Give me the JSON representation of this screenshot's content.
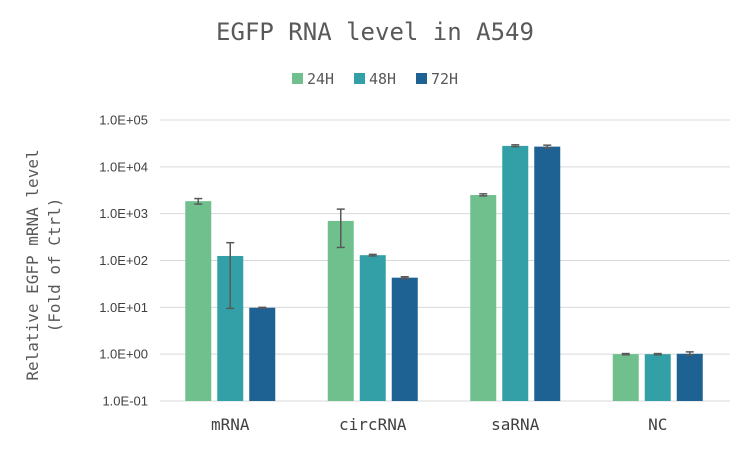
{
  "chart_data": {
    "type": "bar",
    "title": "EGFP RNA level in A549",
    "ylabel_line1": "Relative EGFP mRNA level",
    "ylabel_line2": "(Fold of Ctrl)",
    "yscale": "log",
    "ylim": [
      0.1,
      100000
    ],
    "yticks": [
      0.1,
      1,
      10,
      100,
      1000,
      10000,
      100000
    ],
    "ytick_labels": [
      "1.0E-01",
      "1.0E+00",
      "1.0E+01",
      "1.0E+02",
      "1.0E+03",
      "1.0E+04",
      "1.0E+05"
    ],
    "grid": true,
    "legend_position": "top",
    "categories": [
      "mRNA",
      "circRNA",
      "saRNA",
      "NC"
    ],
    "series": [
      {
        "name": "24H",
        "color": "#70c08e",
        "values": [
          1850,
          700,
          2500,
          1.0
        ],
        "err_low": [
          1600,
          190,
          2400,
          0.97
        ],
        "err_high": [
          2100,
          1250,
          2650,
          1.03
        ]
      },
      {
        "name": "48H",
        "color": "#32a0a6",
        "values": [
          125,
          130,
          28000,
          1.0
        ],
        "err_low": [
          9.5,
          125,
          27000,
          0.97
        ],
        "err_high": [
          240,
          135,
          29500,
          1.03
        ]
      },
      {
        "name": "72H",
        "color": "#1e6193",
        "values": [
          9.8,
          43,
          27000,
          1.02
        ],
        "err_low": [
          9.6,
          41,
          25000,
          0.95
        ],
        "err_high": [
          10.0,
          45,
          29000,
          1.12
        ]
      }
    ]
  }
}
